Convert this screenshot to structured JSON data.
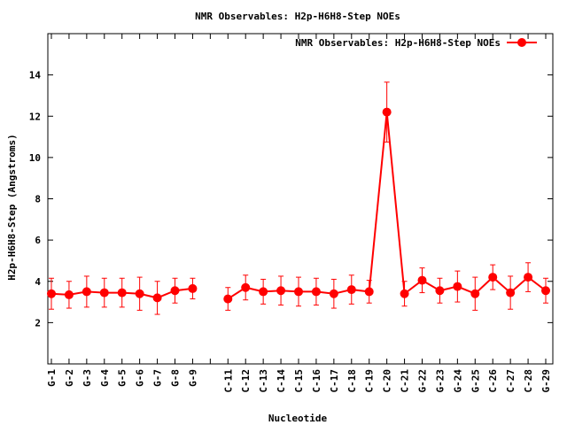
{
  "chart_data": {
    "type": "line",
    "title": "NMR Observables: H2p-H6H8-Step NOEs",
    "xlabel": "Nucleotide",
    "ylabel": "H2p-H6H8-Step (Angstroms)",
    "ylim": [
      0,
      16
    ],
    "yticks": [
      2,
      4,
      6,
      8,
      10,
      12,
      14
    ],
    "grid": false,
    "legend_position": "top-right",
    "series_color": "#ff0000",
    "categories": [
      "G-1",
      "G-2",
      "G-3",
      "G-4",
      "G-5",
      "G-6",
      "G-7",
      "G-8",
      "G-9",
      "",
      "C-11",
      "C-12",
      "C-13",
      "C-14",
      "C-15",
      "C-16",
      "C-17",
      "C-18",
      "C-19",
      "C-20",
      "C-21",
      "G-22",
      "G-23",
      "G-24",
      "G-25",
      "C-26",
      "C-27",
      "C-28",
      "G-29"
    ],
    "series": [
      {
        "name": "NMR Observables: H2p-H6H8-Step NOEs",
        "values": [
          3.4,
          3.35,
          3.5,
          3.45,
          3.45,
          3.4,
          3.2,
          3.55,
          3.65,
          null,
          3.15,
          3.7,
          3.5,
          3.55,
          3.5,
          3.5,
          3.4,
          3.6,
          3.5,
          12.2,
          3.4,
          4.05,
          3.55,
          3.75,
          3.4,
          4.2,
          3.45,
          4.2,
          3.55
        ],
        "errors": [
          0.75,
          0.65,
          0.75,
          0.7,
          0.7,
          0.8,
          0.8,
          0.6,
          0.5,
          null,
          0.55,
          0.6,
          0.6,
          0.7,
          0.7,
          0.65,
          0.7,
          0.7,
          0.55,
          1.45,
          0.6,
          0.6,
          0.6,
          0.75,
          0.8,
          0.6,
          0.8,
          0.7,
          0.6
        ]
      }
    ]
  }
}
